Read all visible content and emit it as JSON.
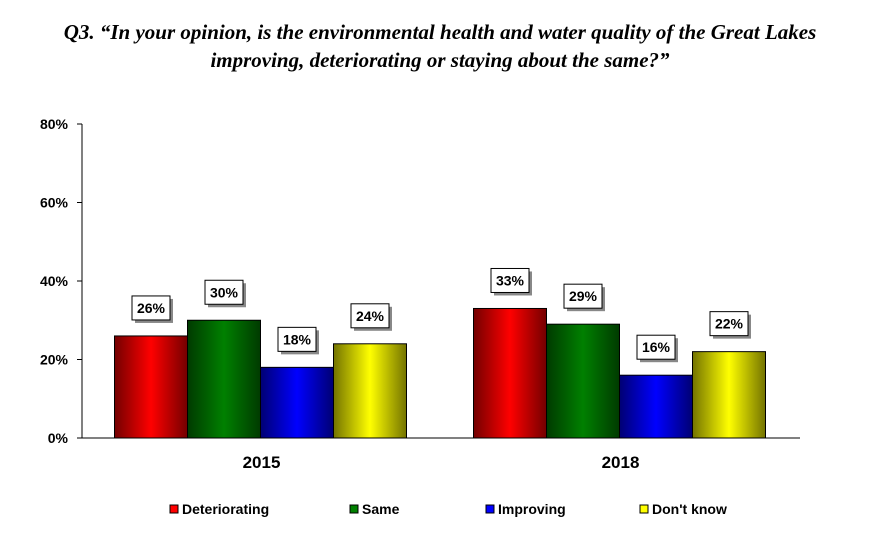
{
  "title": {
    "line1": "Q3. “In your opinion, is the environmental health and water quality of the Great Lakes",
    "line2": "improving, deteriorating or staying about the same?”"
  },
  "chart_data": {
    "type": "bar",
    "title": "Q3. “In your opinion, is the environmental health and water quality of the Great Lakes improving, deteriorating or staying about the same?”",
    "categories": [
      "2015",
      "2018"
    ],
    "series": [
      {
        "name": "Deteriorating",
        "values": [
          26,
          33
        ],
        "value_labels": [
          "26%",
          "33%"
        ],
        "color": "#ff0000"
      },
      {
        "name": "Same",
        "values": [
          30,
          29
        ],
        "value_labels": [
          "30%",
          "29%"
        ],
        "color": "#008000"
      },
      {
        "name": "Improving",
        "values": [
          18,
          16
        ],
        "value_labels": [
          "18%",
          "16%"
        ],
        "color": "#0000ff"
      },
      {
        "name": "Don't know",
        "values": [
          24,
          22
        ],
        "value_labels": [
          "24%",
          "22%"
        ],
        "color": "#ffff00"
      }
    ],
    "ylim": [
      0,
      80
    ],
    "y_ticks": [
      0,
      20,
      40,
      60,
      80
    ],
    "y_tick_labels": [
      "0%",
      "20%",
      "40%",
      "60%",
      "80%"
    ],
    "xlabel": "",
    "ylabel": "",
    "grid": false,
    "legend_position": "bottom"
  }
}
